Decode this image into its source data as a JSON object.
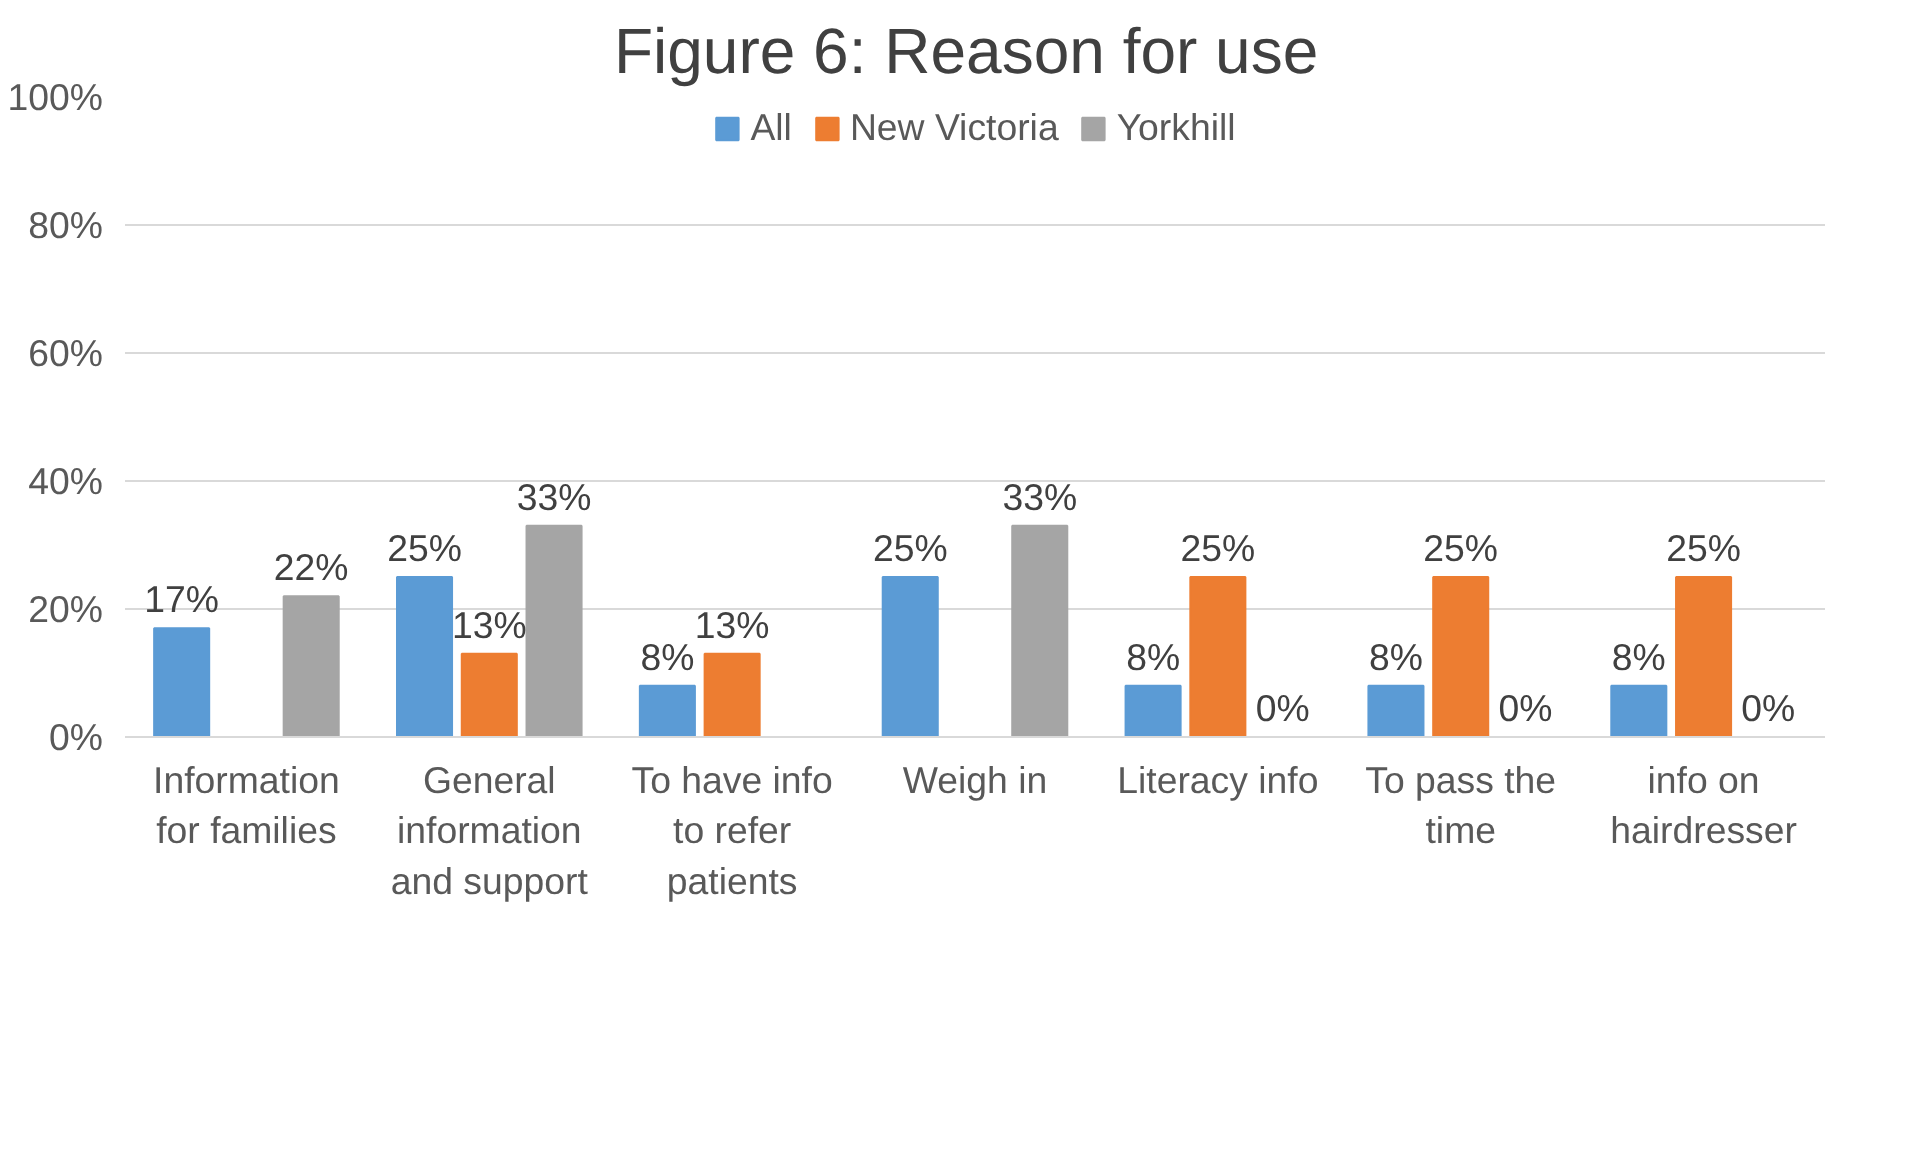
{
  "chart_data": {
    "type": "bar",
    "title": "Figure 6:  Reason for use",
    "categories": [
      "Information for families",
      "General information and support",
      "To have info to refer patients",
      "Weigh in",
      "Literacy info",
      "To pass the time",
      "info on hairdresser"
    ],
    "series": [
      {
        "name": "All",
        "color": "#5b9bd5",
        "values": [
          17,
          25,
          8,
          25,
          8,
          8,
          8
        ],
        "value_labels": [
          "17%",
          "25%",
          "8%",
          "25%",
          "8%",
          "8%",
          "8%"
        ]
      },
      {
        "name": "New Victoria",
        "color": "#ed7d31",
        "values": [
          null,
          13,
          13,
          null,
          25,
          25,
          25
        ],
        "value_labels": [
          null,
          "13%",
          "13%",
          null,
          "25%",
          "25%",
          "25%"
        ]
      },
      {
        "name": "Yorkhill",
        "color": "#a5a5a5",
        "values": [
          22,
          33,
          null,
          33,
          0,
          0,
          0
        ],
        "value_labels": [
          "22%",
          "33%",
          null,
          "33%",
          "0%",
          "0%",
          "0%"
        ]
      }
    ],
    "ylim": [
      0,
      100
    ],
    "yticks": [
      {
        "value": 0,
        "label": "0%"
      },
      {
        "value": 20,
        "label": "20%"
      },
      {
        "value": 40,
        "label": "40%"
      },
      {
        "value": 60,
        "label": "60%"
      },
      {
        "value": 80,
        "label": "80%"
      },
      {
        "value": 100,
        "label": "100%"
      }
    ],
    "grid": "y",
    "legend": "top"
  }
}
